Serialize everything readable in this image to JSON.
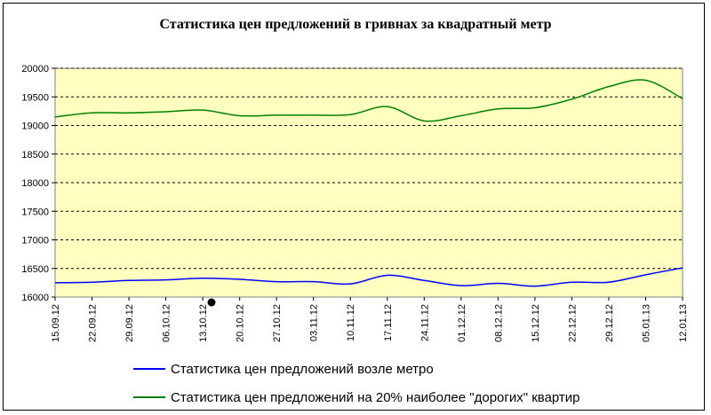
{
  "chart_data": {
    "type": "line",
    "title": "Статистика цен предложений в гривнах за квадратный метр",
    "xlabel": "",
    "ylabel": "",
    "ylim": [
      16000,
      20000
    ],
    "yticks": [
      16000,
      16500,
      17000,
      17500,
      18000,
      18500,
      19000,
      19500,
      20000
    ],
    "categories": [
      "15.09.12",
      "22.09.12",
      "29.09.12",
      "06.10.12",
      "13.10.12",
      "20.10.12",
      "27.10.12",
      "03.11.12",
      "10.11.12",
      "17.11.12",
      "24.11.12",
      "01.12.12",
      "08.12.12",
      "15.12.12",
      "22.12.12",
      "29.12.12",
      "05.01.13",
      "12.01.13"
    ],
    "grid": "horizontal dashed",
    "plot_background": "#FFFFC0",
    "legend_position": "bottom",
    "series": [
      {
        "name": "Статистика цен предложений возле метро",
        "color": "#0000FF",
        "values": [
          16250,
          16260,
          16290,
          16300,
          16330,
          16310,
          16270,
          16270,
          16230,
          16380,
          16290,
          16200,
          16240,
          16190,
          16260,
          16260,
          16390,
          16510
        ]
      },
      {
        "name": "Статистика цен предложений на 20% наиболее \"дорогих\" квартир",
        "color": "#008000",
        "values": [
          19150,
          19220,
          19220,
          19240,
          19270,
          19170,
          19180,
          19180,
          19190,
          19330,
          19080,
          19170,
          19290,
          19310,
          19460,
          19680,
          19790,
          19470
        ]
      }
    ]
  }
}
